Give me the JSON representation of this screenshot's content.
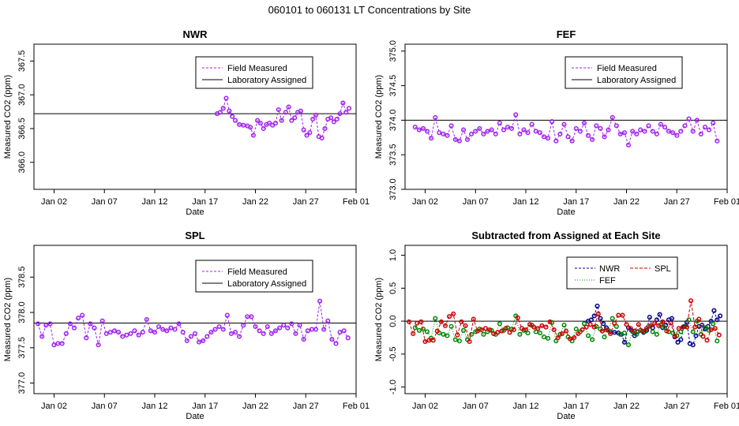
{
  "page_title": "060101  to  060131 LT Concentrations by Site",
  "colors": {
    "field": "#a020f0",
    "lab": "#000000",
    "nwr": "#00008b",
    "spl": "#cc0000",
    "fef": "#008800"
  },
  "chart_data": [
    {
      "id": "nwr",
      "type": "line",
      "title": "NWR",
      "xlabel": "Date",
      "ylabel": "Measured CO2 (ppm)",
      "xlim": [
        -1,
        31
      ],
      "ylim": [
        365.6,
        367.75
      ],
      "xticks": [
        1,
        6,
        11,
        16,
        21,
        26,
        31
      ],
      "xtick_labels": [
        "Jan 02",
        "Jan 07",
        "Jan 12",
        "Jan 17",
        "Jan 22",
        "Jan 27",
        "Feb 01"
      ],
      "yticks": [
        366.0,
        366.5,
        367.0,
        367.5
      ],
      "ytick_labels": [
        "366.0",
        "366.5",
        "367.0",
        "367.5"
      ],
      "reference": 366.72,
      "legend": {
        "position": "top-right",
        "entries": [
          "Field Measured",
          "Laboratory Assigned"
        ]
      },
      "x": [
        17.2,
        17.5,
        17.8,
        18.1,
        18.4,
        18.7,
        19.0,
        19.4,
        19.8,
        20.2,
        20.5,
        20.8,
        21.2,
        21.5,
        21.8,
        22.1,
        22.4,
        22.7,
        23.0,
        23.3,
        23.6,
        24.0,
        24.3,
        24.6,
        24.9,
        25.2,
        25.5,
        25.8,
        26.1,
        26.4,
        26.7,
        27.0,
        27.3,
        27.6,
        27.9,
        28.2,
        28.5,
        28.8,
        29.1,
        29.4,
        29.7,
        30.0,
        30.3
      ],
      "series": [
        {
          "name": "Field Measured",
          "values": [
            366.72,
            366.74,
            366.8,
            366.95,
            366.76,
            366.68,
            366.62,
            366.56,
            366.55,
            366.54,
            366.52,
            366.4,
            366.62,
            366.58,
            366.5,
            366.56,
            366.58,
            366.55,
            366.58,
            366.78,
            366.62,
            366.74,
            366.82,
            366.62,
            366.66,
            366.74,
            366.76,
            366.48,
            366.4,
            366.44,
            366.64,
            366.7,
            366.38,
            366.36,
            366.5,
            366.64,
            366.66,
            366.6,
            366.64,
            366.72,
            366.88,
            366.74,
            366.8
          ]
        }
      ]
    },
    {
      "id": "fef",
      "type": "line",
      "title": "FEF",
      "xlabel": "Date",
      "ylabel": "Measured CO2 (ppm)",
      "xlim": [
        -1,
        31
      ],
      "ylim": [
        373.0,
        375.1
      ],
      "xticks": [
        1,
        6,
        11,
        16,
        21,
        26,
        31
      ],
      "xtick_labels": [
        "Jan 02",
        "Jan 07",
        "Jan 12",
        "Jan 17",
        "Jan 22",
        "Jan 27",
        "Feb 01"
      ],
      "yticks": [
        373.0,
        373.5,
        374.0,
        374.5,
        375.0
      ],
      "ytick_labels": [
        "373.0",
        "373.5",
        "374.0",
        "374.5",
        "375.0"
      ],
      "reference": 374.0,
      "legend": {
        "position": "top-right",
        "entries": [
          "Field Measured",
          "Laboratory Assigned"
        ]
      },
      "x": [
        0.0,
        0.4,
        0.8,
        1.2,
        1.6,
        2.0,
        2.4,
        2.8,
        3.2,
        3.6,
        4.0,
        4.4,
        4.8,
        5.2,
        5.6,
        6.0,
        6.4,
        6.8,
        7.2,
        7.6,
        8.0,
        8.4,
        8.8,
        9.2,
        9.6,
        10.0,
        10.4,
        10.8,
        11.2,
        11.6,
        12.0,
        12.4,
        12.8,
        13.2,
        13.6,
        14.0,
        14.4,
        14.8,
        15.2,
        15.6,
        16.0,
        16.4,
        16.8,
        17.2,
        17.6,
        18.0,
        18.4,
        18.8,
        19.2,
        19.6,
        20.0,
        20.4,
        20.8,
        21.2,
        21.6,
        22.0,
        22.4,
        22.8,
        23.2,
        23.6,
        24.0,
        24.4,
        24.8,
        25.2,
        25.6,
        26.0,
        26.4,
        26.8,
        27.2,
        27.6,
        28.0,
        28.4,
        28.8,
        29.2,
        29.6,
        30.0
      ],
      "series": [
        {
          "name": "Field Measured",
          "values": [
            373.9,
            373.86,
            373.88,
            373.84,
            373.74,
            374.04,
            373.82,
            373.8,
            373.78,
            373.92,
            373.72,
            373.7,
            373.86,
            373.72,
            373.8,
            373.84,
            373.88,
            373.8,
            373.84,
            373.86,
            373.8,
            373.96,
            373.86,
            373.9,
            373.88,
            374.08,
            373.8,
            373.86,
            373.82,
            373.94,
            373.84,
            373.82,
            373.76,
            373.74,
            373.98,
            373.7,
            373.8,
            373.94,
            373.76,
            373.7,
            373.88,
            373.84,
            373.96,
            373.78,
            373.72,
            373.92,
            373.88,
            373.76,
            373.86,
            374.04,
            373.92,
            373.8,
            373.82,
            373.64,
            373.84,
            373.8,
            373.86,
            373.84,
            373.92,
            373.84,
            373.8,
            373.94,
            373.9,
            373.84,
            373.82,
            373.78,
            373.84,
            373.92,
            374.02,
            373.84,
            374.0,
            373.8,
            373.9,
            373.86,
            373.96,
            373.7
          ]
        }
      ]
    },
    {
      "id": "spl",
      "type": "line",
      "title": "SPL",
      "xlabel": "Date",
      "ylabel": "Measured CO2 (ppm)",
      "xlim": [
        -1,
        31
      ],
      "ylim": [
        376.85,
        378.95
      ],
      "xticks": [
        1,
        6,
        11,
        16,
        21,
        26,
        31
      ],
      "xtick_labels": [
        "Jan 02",
        "Jan 07",
        "Jan 12",
        "Jan 17",
        "Jan 22",
        "Jan 27",
        "Feb 01"
      ],
      "yticks": [
        377.0,
        377.5,
        378.0,
        378.5
      ],
      "ytick_labels": [
        "377.0",
        "377.5",
        "378.0",
        "378.5"
      ],
      "reference": 377.85,
      "legend": {
        "position": "top-right",
        "entries": [
          "Field Measured",
          "Laboratory Assigned"
        ]
      },
      "x": [
        -0.6,
        -0.2,
        0.2,
        0.6,
        1.0,
        1.4,
        1.8,
        2.2,
        2.6,
        3.0,
        3.4,
        3.8,
        4.2,
        4.6,
        5.0,
        5.4,
        5.8,
        6.2,
        6.6,
        7.0,
        7.4,
        7.8,
        8.2,
        8.6,
        9.0,
        9.4,
        9.8,
        10.2,
        10.6,
        11.0,
        11.4,
        11.8,
        12.2,
        12.6,
        13.0,
        13.4,
        13.8,
        14.2,
        14.6,
        15.0,
        15.4,
        15.8,
        16.2,
        16.6,
        17.0,
        17.4,
        17.8,
        18.2,
        18.6,
        19.0,
        19.4,
        19.8,
        20.2,
        20.6,
        21.0,
        21.4,
        21.8,
        22.2,
        22.6,
        23.0,
        23.4,
        23.8,
        24.2,
        24.6,
        25.0,
        25.4,
        25.8,
        26.2,
        26.6,
        27.0,
        27.4,
        27.8,
        28.2,
        28.6,
        29.0,
        29.4,
        29.8,
        30.2
      ],
      "series": [
        {
          "name": "Field Measured",
          "values": [
            377.84,
            377.66,
            377.82,
            377.84,
            377.54,
            377.56,
            377.56,
            377.7,
            377.84,
            377.78,
            377.92,
            377.96,
            377.64,
            377.84,
            377.78,
            377.54,
            377.88,
            377.7,
            377.72,
            377.74,
            377.72,
            377.66,
            377.68,
            377.7,
            377.74,
            377.68,
            377.72,
            377.9,
            377.74,
            377.72,
            377.8,
            377.76,
            377.74,
            377.78,
            377.76,
            377.84,
            377.72,
            377.6,
            377.66,
            377.7,
            377.58,
            377.6,
            377.66,
            377.72,
            377.76,
            377.8,
            377.76,
            377.96,
            377.7,
            377.72,
            377.66,
            377.82,
            377.94,
            377.94,
            377.8,
            377.74,
            377.7,
            377.8,
            377.7,
            377.74,
            377.78,
            377.82,
            377.78,
            377.84,
            377.7,
            377.82,
            377.62,
            377.74,
            377.76,
            377.76,
            378.16,
            377.76,
            377.88,
            377.62,
            377.56,
            377.72,
            377.74,
            377.64
          ]
        }
      ]
    },
    {
      "id": "diff",
      "type": "line",
      "title": "Subtracted from Assigned at Each Site",
      "xlabel": "Date",
      "ylabel": "Measured CO2 (ppm)",
      "xlim": [
        -1,
        31
      ],
      "ylim": [
        -1.1,
        1.15
      ],
      "xticks": [
        1,
        6,
        11,
        16,
        21,
        26,
        31
      ],
      "xtick_labels": [
        "Jan 02",
        "Jan 07",
        "Jan 12",
        "Jan 17",
        "Jan 22",
        "Jan 27",
        "Feb 01"
      ],
      "yticks": [
        -1.0,
        -0.5,
        0.0,
        0.5,
        1.0
      ],
      "ytick_labels": [
        "-1.0",
        "-0.5",
        "0.0",
        "0.5",
        "1.0"
      ],
      "reference": 0.0,
      "legend": {
        "position": "top-right",
        "entries": [
          "NWR",
          "FEF",
          "SPL"
        ]
      },
      "series": [
        {
          "name": "NWR",
          "x": [
            17.2,
            17.5,
            17.8,
            18.1,
            18.4,
            18.7,
            19.0,
            19.4,
            19.8,
            20.2,
            20.5,
            20.8,
            21.2,
            21.5,
            21.8,
            22.1,
            22.4,
            22.7,
            23.0,
            23.3,
            23.6,
            24.0,
            24.3,
            24.6,
            24.9,
            25.2,
            25.5,
            25.8,
            26.1,
            26.4,
            26.7,
            27.0,
            27.3,
            27.6,
            27.9,
            28.2,
            28.5,
            28.8,
            29.1,
            29.4,
            29.7,
            30.0,
            30.3
          ],
          "values": [
            0.0,
            0.02,
            0.08,
            0.23,
            0.04,
            -0.04,
            -0.1,
            -0.16,
            -0.17,
            -0.18,
            -0.2,
            -0.32,
            -0.1,
            -0.14,
            -0.22,
            -0.16,
            -0.14,
            -0.17,
            -0.14,
            0.06,
            -0.1,
            0.02,
            0.1,
            -0.1,
            -0.06,
            0.02,
            0.04,
            -0.24,
            -0.32,
            -0.28,
            -0.08,
            -0.02,
            -0.34,
            -0.36,
            -0.22,
            -0.08,
            -0.06,
            -0.12,
            -0.08,
            0.0,
            0.16,
            0.02,
            0.08
          ]
        },
        {
          "name": "FEF",
          "x": [
            0.0,
            0.4,
            0.8,
            1.2,
            1.6,
            2.0,
            2.4,
            2.8,
            3.2,
            3.6,
            4.0,
            4.4,
            4.8,
            5.2,
            5.6,
            6.0,
            6.4,
            6.8,
            7.2,
            7.6,
            8.0,
            8.4,
            8.8,
            9.2,
            9.6,
            10.0,
            10.4,
            10.8,
            11.2,
            11.6,
            12.0,
            12.4,
            12.8,
            13.2,
            13.6,
            14.0,
            14.4,
            14.8,
            15.2,
            15.6,
            16.0,
            16.4,
            16.8,
            17.2,
            17.6,
            18.0,
            18.4,
            18.8,
            19.2,
            19.6,
            20.0,
            20.4,
            20.8,
            21.2,
            21.6,
            22.0,
            22.4,
            22.8,
            23.2,
            23.6,
            24.0,
            24.4,
            24.8,
            25.2,
            25.6,
            26.0,
            26.4,
            26.8,
            27.2,
            27.6,
            28.0,
            28.4,
            28.8,
            29.2,
            29.6,
            30.0
          ],
          "values": [
            -0.1,
            -0.14,
            -0.12,
            -0.16,
            -0.26,
            0.04,
            -0.18,
            -0.2,
            -0.22,
            -0.08,
            -0.28,
            -0.3,
            -0.14,
            -0.28,
            -0.2,
            -0.16,
            -0.12,
            -0.2,
            -0.16,
            -0.14,
            -0.2,
            -0.04,
            -0.14,
            -0.1,
            -0.12,
            0.08,
            -0.2,
            -0.14,
            -0.18,
            -0.06,
            -0.16,
            -0.18,
            -0.24,
            -0.26,
            -0.02,
            -0.3,
            -0.2,
            -0.06,
            -0.24,
            -0.3,
            -0.12,
            -0.16,
            -0.04,
            -0.22,
            -0.28,
            -0.08,
            -0.12,
            -0.24,
            -0.14,
            0.04,
            -0.08,
            -0.2,
            -0.18,
            -0.36,
            -0.16,
            -0.2,
            -0.14,
            -0.16,
            -0.08,
            -0.16,
            -0.2,
            -0.06,
            -0.1,
            -0.16,
            -0.18,
            -0.22,
            -0.16,
            -0.08,
            0.02,
            -0.16,
            0.0,
            -0.2,
            -0.1,
            -0.14,
            -0.04,
            -0.3
          ]
        },
        {
          "name": "SPL",
          "x": [
            -0.6,
            -0.2,
            0.2,
            0.6,
            1.0,
            1.4,
            1.8,
            2.2,
            2.6,
            3.0,
            3.4,
            3.8,
            4.2,
            4.6,
            5.0,
            5.4,
            5.8,
            6.2,
            6.6,
            7.0,
            7.4,
            7.8,
            8.2,
            8.6,
            9.0,
            9.4,
            9.8,
            10.2,
            10.6,
            11.0,
            11.4,
            11.8,
            12.2,
            12.6,
            13.0,
            13.4,
            13.8,
            14.2,
            14.6,
            15.0,
            15.4,
            15.8,
            16.2,
            16.6,
            17.0,
            17.4,
            17.8,
            18.2,
            18.6,
            19.0,
            19.4,
            19.8,
            20.2,
            20.6,
            21.0,
            21.4,
            21.8,
            22.2,
            22.6,
            23.0,
            23.4,
            23.8,
            24.2,
            24.6,
            25.0,
            25.4,
            25.8,
            26.2,
            26.6,
            27.0,
            27.4,
            27.8,
            28.2,
            28.6,
            29.0,
            29.4,
            29.8,
            30.2
          ],
          "values": [
            -0.01,
            -0.19,
            -0.03,
            -0.01,
            -0.31,
            -0.29,
            -0.29,
            -0.15,
            -0.01,
            -0.07,
            0.07,
            0.11,
            -0.21,
            -0.01,
            -0.07,
            -0.31,
            0.03,
            -0.15,
            -0.13,
            -0.11,
            -0.13,
            -0.19,
            -0.17,
            -0.15,
            -0.11,
            -0.17,
            -0.13,
            0.05,
            -0.11,
            -0.13,
            -0.05,
            -0.09,
            -0.11,
            -0.07,
            -0.09,
            -0.01,
            -0.13,
            -0.25,
            -0.19,
            -0.15,
            -0.27,
            -0.25,
            -0.19,
            -0.13,
            -0.09,
            -0.05,
            -0.09,
            0.11,
            -0.15,
            -0.13,
            -0.19,
            -0.03,
            0.09,
            0.09,
            -0.05,
            -0.11,
            -0.15,
            -0.05,
            -0.15,
            -0.11,
            -0.07,
            -0.03,
            -0.07,
            -0.01,
            -0.15,
            -0.03,
            -0.23,
            -0.11,
            -0.09,
            -0.09,
            0.31,
            -0.09,
            0.03,
            -0.23,
            -0.29,
            -0.13,
            -0.11,
            -0.21
          ]
        }
      ]
    }
  ]
}
